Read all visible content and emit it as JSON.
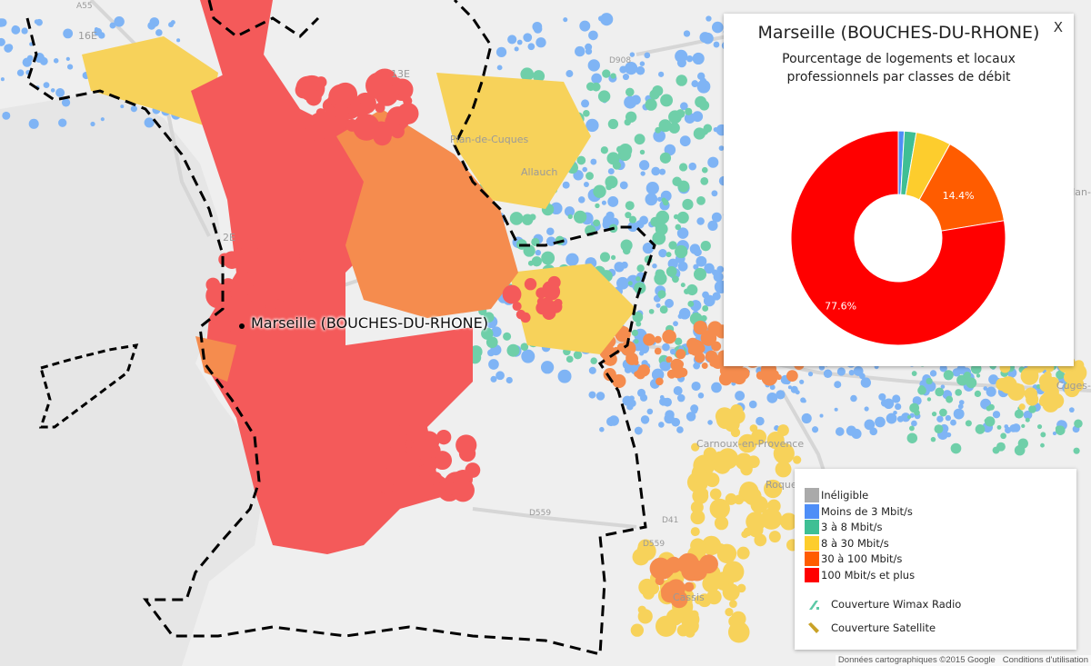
{
  "map": {
    "city_marker_label": "Marseille (BOUCHES-DU-RHONE)",
    "place_labels": [
      "16E",
      "13E",
      "2E",
      "Plan-de-Cuques",
      "Allauch",
      "Carnoux-en-Provence",
      "Cassis",
      "Roque",
      "Cuges-",
      "lan-"
    ],
    "road_labels": [
      "A55",
      "D908",
      "D559",
      "D41",
      "D559"
    ],
    "colors": {
      "sea": "#e6e6e6",
      "land": "#efefef",
      "boundary": "#000000"
    }
  },
  "popup": {
    "title": "Marseille (BOUCHES-DU-RHONE)",
    "subtitle": "Pourcentage de logements et locaux professionnels par classes de débit",
    "close_label": "X"
  },
  "chart_data": {
    "type": "pie",
    "donut": true,
    "title": "Marseille (BOUCHES-DU-RHONE)",
    "subtitle": "Pourcentage de logements et locaux professionnels par classes de débit",
    "categories": [
      "Inéligible",
      "Moins de 3 Mbit/s",
      "3 à 8 Mbit/s",
      "8 à 30 Mbit/s",
      "30 à 100 Mbit/s",
      "100 Mbit/s et plus"
    ],
    "values": [
      0,
      0.9,
      1.8,
      5.3,
      14.4,
      77.6
    ],
    "data_labels": [
      "",
      "",
      "",
      "",
      "14.4%",
      "77.6%"
    ],
    "colors": [
      "#aaaaaa",
      "#4e8ef7",
      "#3fbf94",
      "#fdcd2d",
      "#ff5c00",
      "#ff0000"
    ]
  },
  "legend": {
    "items": [
      {
        "label": "Inéligible",
        "color": "#aaaaaa"
      },
      {
        "label": "Moins de 3 Mbit/s",
        "color": "#4e8ef7"
      },
      {
        "label": "3 à 8 Mbit/s",
        "color": "#3fbf94"
      },
      {
        "label": "8 à 30 Mbit/s",
        "color": "#fdcd2d"
      },
      {
        "label": "30 à 100 Mbit/s",
        "color": "#ff5c00"
      },
      {
        "label": "100 Mbit/s et plus",
        "color": "#ff0000"
      }
    ],
    "coverage": [
      {
        "label": "Couverture Wimax Radio",
        "color": "#5cc9a7",
        "icon": "wimax-stripe-icon"
      },
      {
        "label": "Couverture Satellite",
        "color": "#c9a227",
        "icon": "satellite-stripe-icon"
      }
    ]
  },
  "footer": {
    "attribution": "Données cartographiques ©2015 Google",
    "terms": "Conditions d'utilisation"
  }
}
